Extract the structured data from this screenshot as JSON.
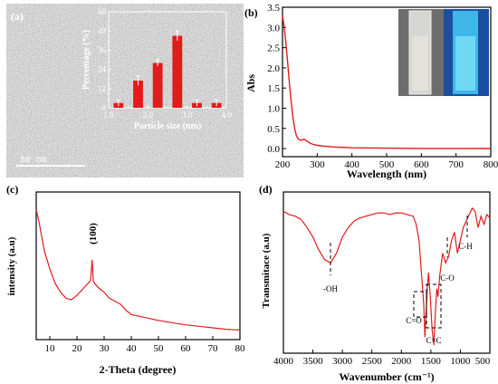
{
  "chart_data": [
    {
      "panel": "(a)",
      "type": "bar",
      "inset": {
        "xlabel": "Particle size (nm)",
        "ylabel": "Percentage (%)",
        "xticks": [
          "1.0",
          "2.0",
          "3.0",
          "4.0"
        ],
        "yticks": [
          "0",
          "12",
          "24",
          "36",
          "48",
          "60"
        ],
        "xlim": [
          1.0,
          4.0
        ],
        "ylim": [
          0,
          60
        ],
        "x": [
          1.25,
          1.75,
          2.25,
          2.75,
          3.25,
          3.75
        ],
        "values": [
          3,
          17,
          28,
          45,
          3,
          3
        ],
        "errors": [
          2,
          3,
          2,
          3,
          2,
          2
        ],
        "bar_color": "#e31b1b"
      },
      "scale_bar_label": "50 nm"
    },
    {
      "panel": "(b)",
      "type": "line",
      "xlabel": "Wavelength (nm)",
      "ylabel": "Abs",
      "xticks": [
        "200",
        "300",
        "400",
        "500",
        "600",
        "700",
        "800"
      ],
      "yticks": [
        "0.0",
        "0.5",
        "1.0",
        "1.5",
        "2.0",
        "2.5",
        "3.0",
        "3.5"
      ],
      "xlim": [
        200,
        800
      ],
      "ylim": [
        -0.2,
        3.5
      ],
      "x": [
        200,
        205,
        210,
        215,
        220,
        225,
        230,
        235,
        240,
        245,
        250,
        255,
        260,
        265,
        270,
        275,
        280,
        290,
        300,
        320,
        350,
        400,
        500,
        600,
        700,
        800
      ],
      "y": [
        3.3,
        3.0,
        2.6,
        2.1,
        1.6,
        1.15,
        0.78,
        0.5,
        0.32,
        0.24,
        0.21,
        0.21,
        0.23,
        0.22,
        0.19,
        0.16,
        0.13,
        0.1,
        0.08,
        0.06,
        0.04,
        0.02,
        0.01,
        0.005,
        0.003,
        0.002
      ],
      "line_color": "#e31b1b"
    },
    {
      "panel": "(c)",
      "type": "line",
      "xlabel": "2-Theta (degree)",
      "ylabel": "intensity (a.u)",
      "xticks": [
        "10",
        "20",
        "30",
        "40",
        "50",
        "60",
        "70",
        "80"
      ],
      "xlim": [
        5,
        80
      ],
      "ylim": [
        0,
        100
      ],
      "annotation": "(100)",
      "x": [
        5,
        6,
        7,
        8,
        10,
        12,
        14,
        16,
        18,
        20,
        22,
        24,
        25,
        25.6,
        26,
        26.5,
        27,
        28,
        30,
        32,
        34,
        36,
        38,
        40,
        45,
        50,
        55,
        60,
        65,
        70,
        75,
        80
      ],
      "y": [
        88,
        80,
        70,
        60,
        48,
        38,
        32,
        28,
        27,
        30,
        34,
        38,
        40,
        54,
        40,
        38,
        37,
        35,
        32,
        28,
        26,
        24,
        20,
        17,
        15,
        13,
        11.5,
        10,
        9,
        8,
        7,
        6.5
      ],
      "line_color": "#e31b1b"
    },
    {
      "panel": "(d)",
      "type": "line",
      "xlabel": "Wavenumber (cm⁻¹)",
      "ylabel": "Transmitace (a.u)",
      "xticks": [
        "4000",
        "3500",
        "3000",
        "2500",
        "2000",
        "1500",
        "1000",
        "500"
      ],
      "xlim": [
        4000,
        500
      ],
      "ylim": [
        0,
        100
      ],
      "annotations": [
        "-OH",
        "C=O",
        "C=C",
        "C-O",
        "C-H"
      ],
      "x": [
        4000,
        3900,
        3800,
        3700,
        3600,
        3500,
        3400,
        3300,
        3200,
        3100,
        3000,
        2900,
        2800,
        2700,
        2600,
        2500,
        2400,
        2300,
        2200,
        2100,
        2000,
        1900,
        1800,
        1750,
        1700,
        1650,
        1620,
        1600,
        1580,
        1560,
        1540,
        1510,
        1480,
        1450,
        1420,
        1400,
        1380,
        1350,
        1300,
        1250,
        1200,
        1150,
        1100,
        1050,
        1000,
        950,
        900,
        850,
        800,
        750,
        700,
        650,
        600,
        550,
        500
      ],
      "y": [
        88,
        86,
        85,
        83,
        78,
        72,
        64,
        58,
        56,
        62,
        72,
        78,
        82,
        84,
        85,
        86,
        87,
        87,
        86,
        87,
        87,
        86,
        85,
        80,
        70,
        45,
        30,
        10,
        25,
        40,
        50,
        35,
        15,
        5,
        28,
        40,
        35,
        48,
        62,
        56,
        60,
        70,
        75,
        62,
        70,
        78,
        82,
        86,
        90,
        88,
        78,
        85,
        80,
        86,
        84
      ],
      "line_color": "#e31b1b"
    }
  ]
}
